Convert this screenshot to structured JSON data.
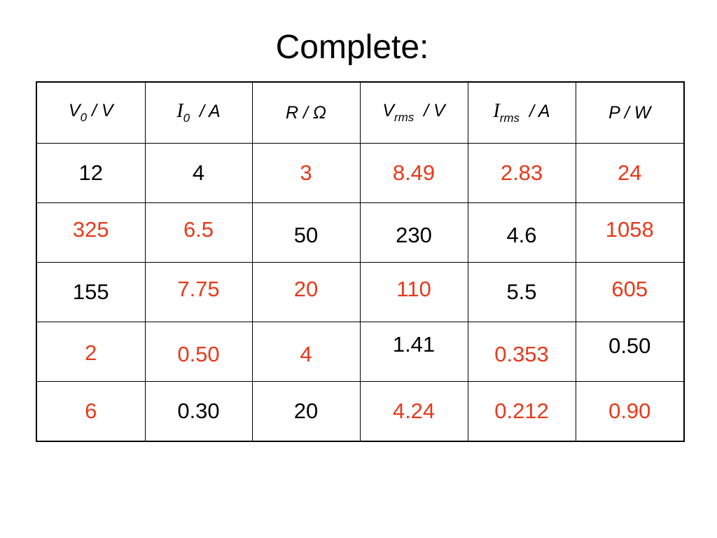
{
  "title": "Complete:",
  "colors": {
    "given": "#000000",
    "answer": "#e8391a"
  },
  "headers": [
    {
      "main": "V",
      "sub": "0",
      "unit": " / V"
    },
    {
      "main": "I",
      "sub": "0",
      "unit": "  / A"
    },
    {
      "main": "R",
      "sub": "",
      "unit": " / Ω"
    },
    {
      "main": "V",
      "sub": "rms",
      "unit": "  / V"
    },
    {
      "main": "I",
      "sub": "rms",
      "unit": "  / A"
    },
    {
      "main": "P",
      "sub": "",
      "unit": " / W"
    }
  ],
  "rows": [
    [
      {
        "v": "12",
        "t": "given"
      },
      {
        "v": "4",
        "t": "given"
      },
      {
        "v": "3",
        "t": "answer"
      },
      {
        "v": "8.49",
        "t": "answer"
      },
      {
        "v": "2.83",
        "t": "answer"
      },
      {
        "v": "24",
        "t": "answer"
      }
    ],
    [
      {
        "v": "325",
        "t": "answer"
      },
      {
        "v": "6.5",
        "t": "answer"
      },
      {
        "v": "50",
        "t": "given"
      },
      {
        "v": "230",
        "t": "given"
      },
      {
        "v": "4.6",
        "t": "given"
      },
      {
        "v": "1058",
        "t": "answer"
      }
    ],
    [
      {
        "v": "155",
        "t": "given"
      },
      {
        "v": "7.75",
        "t": "answer"
      },
      {
        "v": "20",
        "t": "answer"
      },
      {
        "v": "110",
        "t": "answer"
      },
      {
        "v": "5.5",
        "t": "given"
      },
      {
        "v": "605",
        "t": "answer"
      }
    ],
    [
      {
        "v": "2",
        "t": "answer"
      },
      {
        "v": "0.50",
        "t": "answer"
      },
      {
        "v": "4",
        "t": "answer"
      },
      {
        "v": "1.41",
        "t": "given"
      },
      {
        "v": "0.353",
        "t": "answer"
      },
      {
        "v": "0.50",
        "t": "given"
      }
    ],
    [
      {
        "v": "6",
        "t": "answer"
      },
      {
        "v": "0.30",
        "t": "given"
      },
      {
        "v": "20",
        "t": "given"
      },
      {
        "v": "4.24",
        "t": "answer"
      },
      {
        "v": "0.212",
        "t": "answer"
      },
      {
        "v": "0.90",
        "t": "answer"
      }
    ]
  ]
}
